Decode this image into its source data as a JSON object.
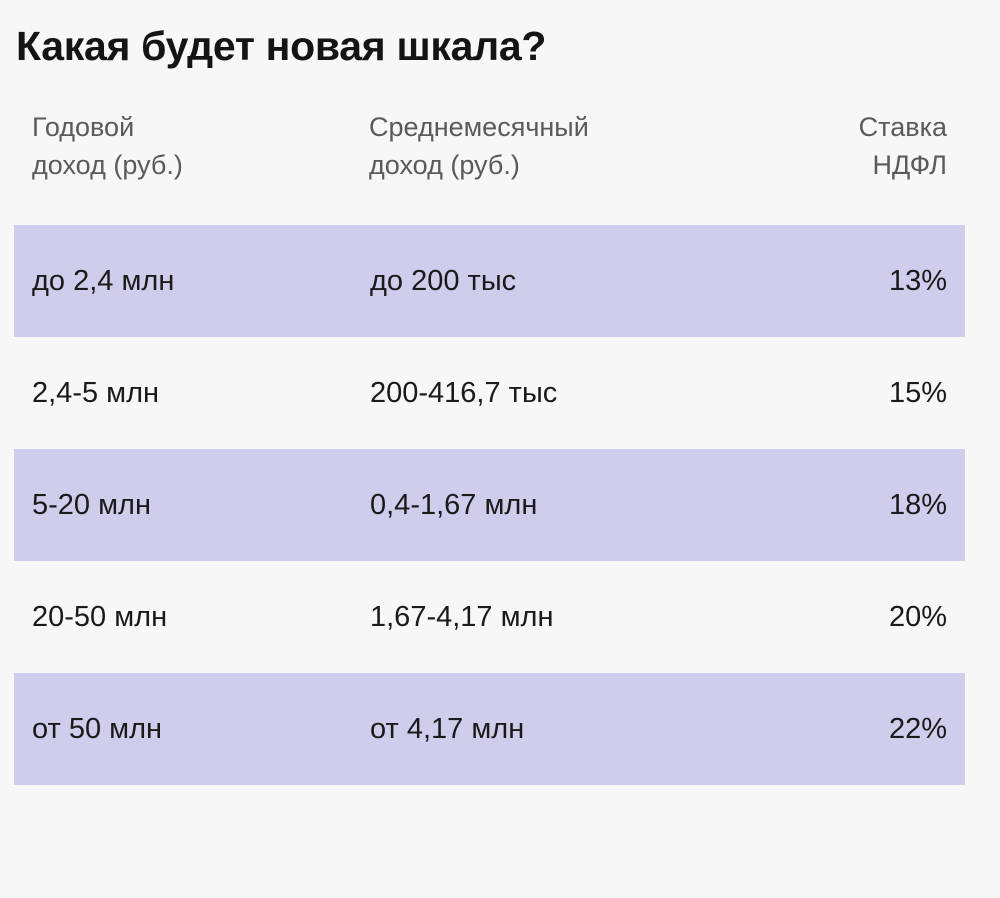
{
  "title": "Какая будет новая шкала?",
  "colors": {
    "background": "#f7f7f7",
    "row_highlight": "#d0cdec",
    "header_text": "#5a5a5a",
    "body_text": "#1a1a1a"
  },
  "table": {
    "headers": [
      {
        "line1": "Годовой",
        "line2": "доход (руб.)"
      },
      {
        "line1": "Среднемесячный",
        "line2": "доход (руб.)"
      },
      {
        "line1": "Ставка",
        "line2": "НДФЛ"
      }
    ],
    "rows": [
      {
        "annual": "до 2,4 млн",
        "monthly": "до 200 тыс",
        "rate": "13%"
      },
      {
        "annual": "2,4-5 млн",
        "monthly": "200-416,7 тыс",
        "rate": "15%"
      },
      {
        "annual": "5-20 млн",
        "monthly": "0,4-1,67 млн",
        "rate": "18%"
      },
      {
        "annual": "20-50 млн",
        "monthly": "1,67-4,17 млн",
        "rate": "20%"
      },
      {
        "annual": "от 50 млн",
        "monthly": "от 4,17 млн",
        "rate": "22%"
      }
    ]
  }
}
